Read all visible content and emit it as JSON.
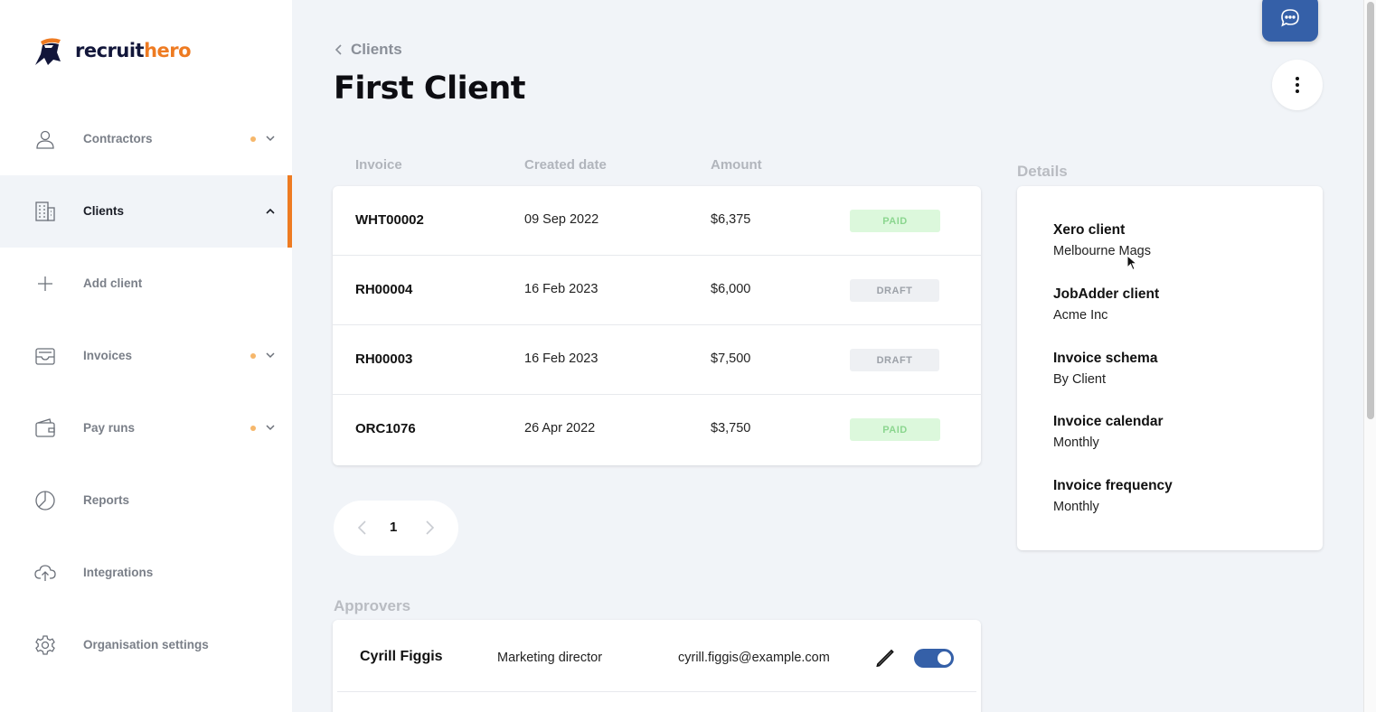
{
  "app": {
    "logo_part1": "recruit",
    "logo_part2": "hero",
    "brand_color": "#ee7b22",
    "primary_color": "#3560a8"
  },
  "sidebar": {
    "items": [
      {
        "label": "Contractors",
        "icon": "user-icon",
        "dot": true,
        "chevron": "down"
      },
      {
        "label": "Clients",
        "icon": "building-icon",
        "active": true,
        "chevron": "up"
      },
      {
        "label": "Add client",
        "icon": "plus-icon"
      },
      {
        "label": "Invoices",
        "icon": "inbox-icon",
        "dot": true,
        "chevron": "down"
      },
      {
        "label": "Pay runs",
        "icon": "wallet-icon",
        "dot": true,
        "chevron": "down"
      },
      {
        "label": "Reports",
        "icon": "pie-chart-icon"
      },
      {
        "label": "Integrations",
        "icon": "cloud-upload-icon"
      },
      {
        "label": "Organisation settings",
        "icon": "gear-icon"
      }
    ]
  },
  "header": {
    "breadcrumb": "Clients",
    "title": "First Client"
  },
  "invoices": {
    "columns": [
      "Invoice",
      "Created date",
      "Amount"
    ],
    "rows": [
      {
        "invoice": "WHT00002",
        "date": "09 Sep 2022",
        "amount": "$6,375",
        "status": "PAID"
      },
      {
        "invoice": "RH00004",
        "date": "16 Feb 2023",
        "amount": "$6,000",
        "status": "DRAFT"
      },
      {
        "invoice": "RH00003",
        "date": "16 Feb 2023",
        "amount": "$7,500",
        "status": "DRAFT"
      },
      {
        "invoice": "ORC1076",
        "date": "26 Apr 2022",
        "amount": "$3,750",
        "status": "PAID"
      }
    ]
  },
  "pagination": {
    "current_page": "1"
  },
  "approvers": {
    "title": "Approvers",
    "rows": [
      {
        "name": "Cyrill Figgis",
        "role": "Marketing director",
        "email": "cyrill.figgis@example.com",
        "enabled": true
      }
    ]
  },
  "details": {
    "title": "Details",
    "fields": [
      {
        "label": "Xero client",
        "value": "Melbourne Mags"
      },
      {
        "label": "JobAdder client",
        "value": "Acme Inc"
      },
      {
        "label": "Invoice schema",
        "value": "By Client"
      },
      {
        "label": "Invoice calendar",
        "value": "Monthly"
      },
      {
        "label": "Invoice frequency",
        "value": "Monthly"
      }
    ]
  }
}
